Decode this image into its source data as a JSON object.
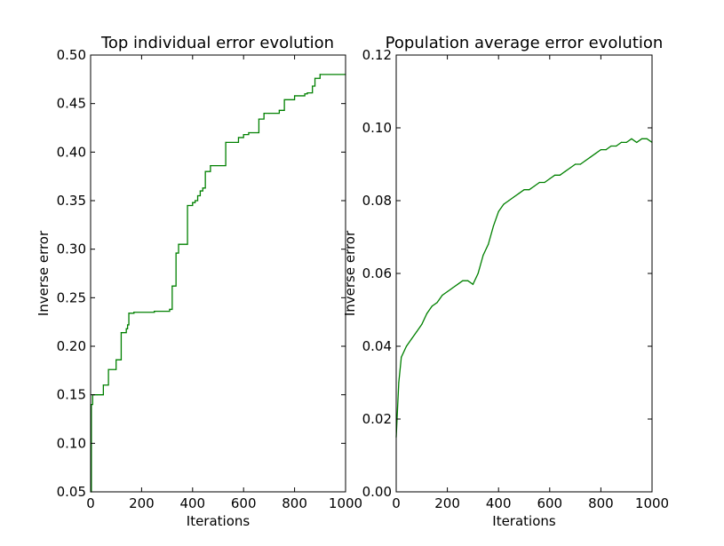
{
  "chart_data": [
    {
      "type": "line",
      "title": "Top individual error evolution",
      "xlabel": "Iterations",
      "ylabel": "Inverse error",
      "xlim": [
        0,
        1000
      ],
      "ylim": [
        0.05,
        0.5
      ],
      "xticks": [
        "0",
        "200",
        "400",
        "600",
        "800",
        "1000"
      ],
      "yticks": [
        "0.05",
        "0.10",
        "0.15",
        "0.20",
        "0.25",
        "0.30",
        "0.35",
        "0.40",
        "0.45",
        "0.50"
      ],
      "line_color": "#008000",
      "step": true,
      "grid": false,
      "series": [
        {
          "x": [
            0,
            3,
            8,
            25,
            50,
            70,
            100,
            120,
            140,
            145,
            150,
            170,
            250,
            310,
            320,
            335,
            345,
            380,
            390,
            400,
            410,
            420,
            430,
            440,
            450,
            470,
            530,
            580,
            600,
            620,
            660,
            680,
            700,
            740,
            760,
            800,
            840,
            850,
            870,
            880,
            900,
            1000
          ],
          "y": [
            0.05,
            0.14,
            0.15,
            0.15,
            0.16,
            0.176,
            0.186,
            0.214,
            0.218,
            0.222,
            0.234,
            0.235,
            0.236,
            0.238,
            0.262,
            0.296,
            0.305,
            0.345,
            0.345,
            0.348,
            0.35,
            0.355,
            0.36,
            0.363,
            0.38,
            0.386,
            0.41,
            0.415,
            0.418,
            0.42,
            0.434,
            0.44,
            0.44,
            0.443,
            0.454,
            0.458,
            0.46,
            0.461,
            0.468,
            0.476,
            0.48,
            0.48
          ]
        }
      ]
    },
    {
      "type": "line",
      "title": "Population average error evolution",
      "xlabel": "Iterations",
      "ylabel": "Inverse error",
      "xlim": [
        0,
        1000
      ],
      "ylim": [
        0.0,
        0.12
      ],
      "xticks": [
        "0",
        "200",
        "400",
        "600",
        "800",
        "1000"
      ],
      "yticks": [
        "0.00",
        "0.02",
        "0.04",
        "0.06",
        "0.08",
        "0.10",
        "0.12"
      ],
      "line_color": "#008000",
      "grid": false,
      "series": [
        {
          "x": [
            0,
            10,
            20,
            40,
            60,
            80,
            100,
            120,
            140,
            160,
            180,
            200,
            220,
            240,
            260,
            280,
            300,
            320,
            340,
            360,
            380,
            400,
            420,
            440,
            460,
            480,
            500,
            520,
            540,
            560,
            580,
            600,
            620,
            640,
            660,
            680,
            700,
            720,
            740,
            760,
            780,
            800,
            820,
            840,
            860,
            880,
            900,
            920,
            940,
            960,
            980,
            1000
          ],
          "y": [
            0.015,
            0.03,
            0.037,
            0.04,
            0.042,
            0.044,
            0.046,
            0.049,
            0.051,
            0.052,
            0.054,
            0.055,
            0.056,
            0.057,
            0.058,
            0.058,
            0.057,
            0.06,
            0.065,
            0.068,
            0.073,
            0.077,
            0.079,
            0.08,
            0.081,
            0.082,
            0.083,
            0.083,
            0.084,
            0.085,
            0.085,
            0.086,
            0.087,
            0.087,
            0.088,
            0.089,
            0.09,
            0.09,
            0.091,
            0.092,
            0.093,
            0.094,
            0.094,
            0.095,
            0.095,
            0.096,
            0.096,
            0.097,
            0.096,
            0.097,
            0.097,
            0.096
          ]
        }
      ]
    }
  ]
}
